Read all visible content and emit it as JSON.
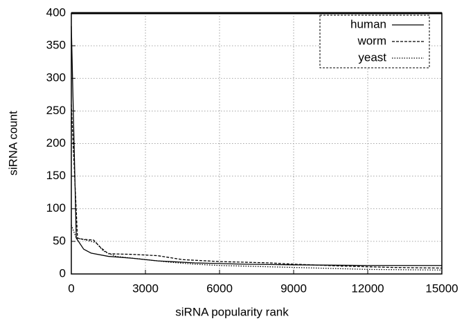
{
  "chart_data": {
    "type": "line",
    "x_label": "siRNA popularity rank",
    "y_label": "siRNA count",
    "xlim": [
      0,
      15000
    ],
    "ylim": [
      0,
      400
    ],
    "xticks": [
      0,
      3000,
      6000,
      9000,
      12000,
      15000
    ],
    "yticks": [
      0,
      50,
      100,
      150,
      200,
      250,
      300,
      350,
      400
    ],
    "grid": true,
    "legend": "top-right",
    "series": [
      {
        "name": "human",
        "color": "#000000",
        "x": [
          0,
          200,
          500,
          800,
          1500,
          2500,
          3500,
          5000,
          7000,
          9000,
          12000,
          15000
        ],
        "values": [
          380,
          55,
          38,
          32,
          27,
          24,
          20,
          17,
          15,
          14,
          13,
          13
        ]
      },
      {
        "name": "worm",
        "color": "#000000",
        "x": [
          0,
          250,
          500,
          900,
          1200,
          1500,
          2500,
          3500,
          4500,
          6000,
          8000,
          9000,
          11000,
          13000,
          15000
        ],
        "values": [
          260,
          55,
          53,
          52,
          40,
          31,
          30,
          28,
          22,
          19,
          17,
          15,
          12,
          10,
          9
        ]
      },
      {
        "name": "yeast",
        "color": "#000000",
        "x": [
          0,
          200,
          600,
          1000,
          1300,
          1800,
          3000,
          4000,
          5000,
          6000,
          8000,
          10000,
          12000,
          15000
        ],
        "values": [
          75,
          55,
          52,
          48,
          35,
          27,
          22,
          18,
          15,
          13,
          11,
          9,
          7,
          6
        ]
      }
    ]
  }
}
